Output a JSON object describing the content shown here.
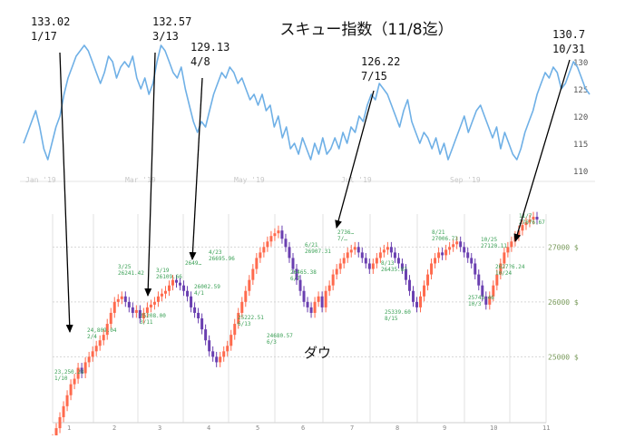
{
  "title": "スキュー指数（11/8迄）",
  "bottom_label": "ダウ",
  "chart_data": [
    {
      "type": "line",
      "name": "skew",
      "color": "#6fb0e6",
      "ylim": [
        108,
        135
      ],
      "y_ticks": [
        110,
        115,
        120,
        125,
        130
      ],
      "x_tick_labels": [
        "Jan '19",
        "Mar '19",
        "May '19",
        "Jul '19",
        "Sep '19"
      ],
      "values": [
        115,
        117,
        119,
        121,
        118,
        114,
        112,
        115,
        118,
        120,
        124,
        127,
        129,
        131,
        132,
        133,
        132,
        130,
        128,
        126,
        128,
        131,
        130,
        127,
        129,
        130,
        129,
        131,
        127,
        125,
        127,
        124,
        126,
        130,
        133,
        132,
        130,
        128,
        127,
        129,
        125,
        122,
        119,
        117,
        119,
        118,
        121,
        124,
        126,
        128,
        127,
        129,
        128,
        126,
        127,
        125,
        123,
        124,
        122,
        124,
        121,
        122,
        118,
        120,
        116,
        118,
        114,
        115,
        113,
        116,
        114,
        112,
        115,
        113,
        116,
        113,
        114,
        116,
        114,
        117,
        115,
        118,
        117,
        120,
        119,
        122,
        124,
        123,
        126,
        125,
        124,
        122,
        120,
        118,
        121,
        123,
        119,
        117,
        115,
        117,
        116,
        114,
        116,
        113,
        115,
        112,
        114,
        116,
        118,
        120,
        117,
        119,
        121,
        122,
        120,
        118,
        116,
        118,
        114,
        117,
        115,
        113,
        112,
        114,
        117,
        119,
        121,
        124,
        126,
        128,
        127,
        129,
        128,
        125,
        126,
        128,
        130,
        129,
        127,
        125,
        124
      ],
      "peaks": [
        {
          "value": "133.02",
          "date": "1/17"
        },
        {
          "value": "132.57",
          "date": "3/13"
        },
        {
          "value": "129.13",
          "date": "4/8"
        },
        {
          "value": "126.22",
          "date": "7/15"
        },
        {
          "value": "130.7",
          "date": "10/31"
        }
      ]
    },
    {
      "type": "candlestick",
      "name": "dow",
      "ylim": [
        23800,
        27600
      ],
      "y_ticks": [
        25000,
        26000,
        27000
      ],
      "y_tick_labels": [
        "25000 $",
        "26000 $",
        "27000 $"
      ],
      "x_tick_labels": [
        "1",
        "2",
        "3",
        "4",
        "5",
        "6",
        "7",
        "8",
        "9",
        "10",
        "11"
      ],
      "up_color": "#ff6a4d",
      "down_color": "#6a3fb0",
      "closes": [
        23500,
        23700,
        23900,
        24100,
        24300,
        24500,
        24600,
        24800,
        24700,
        24900,
        25000,
        25100,
        25200,
        25300,
        25400,
        25600,
        25800,
        26000,
        26050,
        26100,
        26000,
        25900,
        25800,
        25850,
        25700,
        25800,
        25900,
        25950,
        26000,
        26100,
        26150,
        26200,
        26300,
        26400,
        26350,
        26300,
        26200,
        26100,
        25900,
        25800,
        25700,
        25500,
        25300,
        25100,
        25000,
        24900,
        25000,
        25100,
        25200,
        25400,
        25600,
        25800,
        26000,
        26200,
        26400,
        26600,
        26800,
        26900,
        27000,
        27100,
        27200,
        27250,
        27300,
        27150,
        27000,
        26800,
        26600,
        26400,
        26200,
        26000,
        25900,
        25800,
        26000,
        26100,
        25900,
        26200,
        26300,
        26500,
        26600,
        26700,
        26800,
        26900,
        26950,
        27000,
        26900,
        26800,
        26700,
        26600,
        26700,
        26800,
        26900,
        26950,
        27000,
        26900,
        26800,
        26700,
        26600,
        26400,
        26200,
        26000,
        25900,
        26100,
        26300,
        26500,
        26700,
        26800,
        26900,
        26850,
        26950,
        27000,
        27050,
        27100,
        27000,
        26900,
        26800,
        26700,
        26500,
        26300,
        26100,
        25950,
        26100,
        26300,
        26500,
        26700,
        26900,
        27000,
        27100,
        27200,
        27300,
        27400,
        27450,
        27500,
        27550,
        27500
      ],
      "labels": [
        {
          "lines": [
            "23,250.28",
            "1/10"
          ]
        },
        {
          "lines": [
            "24,809.04",
            "2/4"
          ]
        },
        {
          "lines": [
            "3/25",
            "26241.42"
          ]
        },
        {
          "lines": [
            "25208.00",
            "3/11"
          ]
        },
        {
          "lines": [
            "3/19",
            "26109.66"
          ]
        },
        {
          "lines": [
            "2649…"
          ]
        },
        {
          "lines": [
            "4/23",
            "26695.96"
          ]
        },
        {
          "lines": [
            "26002.59",
            "4/1"
          ]
        },
        {
          "lines": [
            "25222.51",
            "6/13"
          ]
        },
        {
          "lines": [
            "24680.57",
            "6/3"
          ]
        },
        {
          "lines": [
            "6/21",
            "26907.31"
          ]
        },
        {
          "lines": [
            "26465.38",
            "6/7"
          ]
        },
        {
          "lines": [
            "2736…",
            "7/…"
          ]
        },
        {
          "lines": [
            "8/13",
            "26435.87"
          ]
        },
        {
          "lines": [
            "25339.60",
            "8/15"
          ]
        },
        {
          "lines": [
            "8/21",
            "27006.73"
          ]
        },
        {
          "lines": [
            "25743.46",
            "10/3"
          ]
        },
        {
          "lines": [
            "10/25",
            "27120.11"
          ]
        },
        {
          "lines": [
            "2627?6.24",
            "10/24"
          ]
        },
        {
          "lines": [
            "11/7",
            "27676.67"
          ]
        }
      ]
    }
  ]
}
